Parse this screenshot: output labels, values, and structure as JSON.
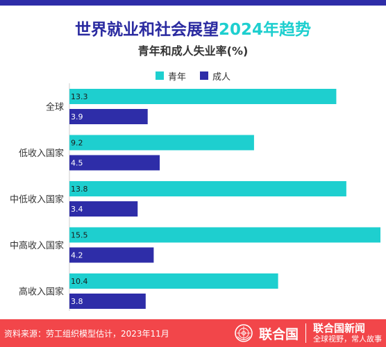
{
  "colors": {
    "youth": "#1ecfcf",
    "adult": "#2e2da8",
    "title_blue": "#2a2aa0",
    "footer_bg": "#f2464a",
    "top_strip": "#2e2da8"
  },
  "header": {
    "title_main": "世界就业和社会展望",
    "title_year": "2024年趋势",
    "subtitle": "青年和成人失业率(%)"
  },
  "legend": {
    "youth_label": "青年",
    "adult_label": "成人"
  },
  "chart_data": {
    "type": "bar",
    "orientation": "horizontal",
    "title": "世界就业和社会展望2024年趋势",
    "subtitle": "青年和成人失业率(%)",
    "categories": [
      "全球",
      "低收入国家",
      "中低收入国家",
      "中高收入国家",
      "高收入国家"
    ],
    "series": [
      {
        "name": "青年",
        "values": [
          13.3,
          9.2,
          13.8,
          15.5,
          10.4
        ],
        "color": "#1ecfcf"
      },
      {
        "name": "成人",
        "values": [
          3.9,
          4.5,
          3.4,
          4.2,
          3.8
        ],
        "color": "#2e2da8"
      }
    ],
    "xlim": [
      0,
      15.5
    ],
    "grid": false,
    "legend_position": "top-center",
    "data_labels": true
  },
  "footer": {
    "source": "资料来源：劳工组织模型估计，2023年11月",
    "brand_name": "联合国",
    "brand_news": "联合国新闻",
    "brand_slogan": "全球视野，常人故事",
    "logo_icon": "un-emblem-icon"
  }
}
